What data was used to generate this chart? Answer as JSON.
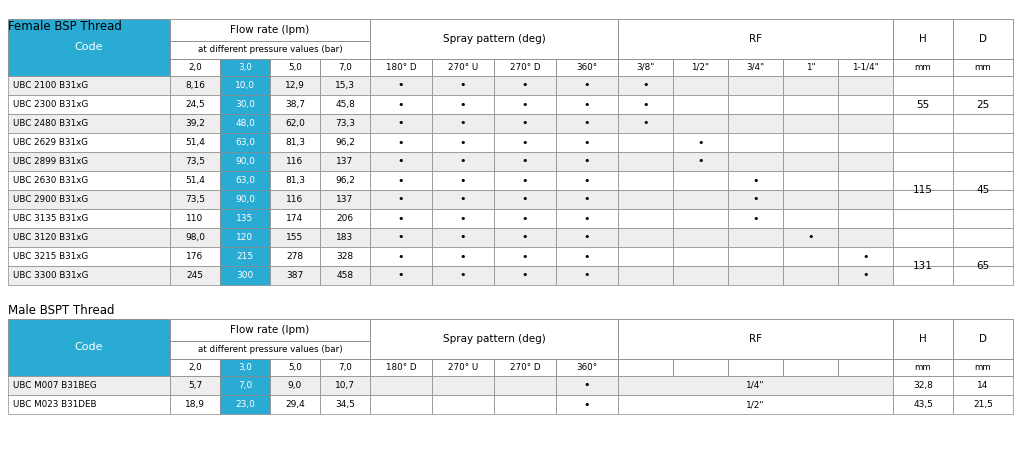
{
  "title1": "Female BSP Thread",
  "title2": "Male BSPT Thread",
  "cyan_color": "#29ABD4",
  "border_color": "#888888",
  "light_gray": "#EEEEEE",
  "female_rows": [
    [
      "UBC 2100 B31xG",
      "8,16",
      "10,0",
      "12,9",
      "15,3",
      "•",
      "•",
      "•",
      "•",
      "•",
      "",
      "",
      "",
      "",
      "",
      ""
    ],
    [
      "UBC 2300 B31xG",
      "24,5",
      "30,0",
      "38,7",
      "45,8",
      "•",
      "•",
      "•",
      "•",
      "•",
      "",
      "",
      "",
      "",
      "",
      ""
    ],
    [
      "UBC 2480 B31xG",
      "39,2",
      "48,0",
      "62,0",
      "73,3",
      "•",
      "•",
      "•",
      "•",
      "•",
      "",
      "",
      "",
      "",
      "",
      ""
    ],
    [
      "UBC 2629 B31xG",
      "51,4",
      "63,0",
      "81,3",
      "96,2",
      "•",
      "•",
      "•",
      "•",
      "",
      "•",
      "",
      "",
      "",
      "",
      ""
    ],
    [
      "UBC 2899 B31xG",
      "73,5",
      "90,0",
      "116",
      "137",
      "•",
      "•",
      "•",
      "•",
      "",
      "•",
      "",
      "",
      "",
      "",
      ""
    ],
    [
      "UBC 2630 B31xG",
      "51,4",
      "63,0",
      "81,3",
      "96,2",
      "•",
      "•",
      "•",
      "•",
      "",
      "",
      "•",
      "",
      "",
      "",
      ""
    ],
    [
      "UBC 2900 B31xG",
      "73,5",
      "90,0",
      "116",
      "137",
      "•",
      "•",
      "•",
      "•",
      "",
      "",
      "•",
      "",
      "",
      "",
      ""
    ],
    [
      "UBC 3135 B31xG",
      "110",
      "135",
      "174",
      "206",
      "•",
      "•",
      "•",
      "•",
      "",
      "",
      "•",
      "",
      "",
      "",
      ""
    ],
    [
      "UBC 3120 B31xG",
      "98,0",
      "120",
      "155",
      "183",
      "•",
      "•",
      "•",
      "•",
      "",
      "",
      "",
      "•",
      "",
      "",
      ""
    ],
    [
      "UBC 3215 B31xG",
      "176",
      "215",
      "278",
      "328",
      "•",
      "•",
      "•",
      "•",
      "",
      "",
      "",
      "",
      "•",
      "",
      ""
    ],
    [
      "UBC 3300 B31xG",
      "245",
      "300",
      "387",
      "458",
      "•",
      "•",
      "•",
      "•",
      "",
      "",
      "",
      "",
      "•",
      "",
      ""
    ]
  ],
  "hd_female": [
    [
      0,
      2,
      "55",
      "25"
    ],
    [
      3,
      8,
      "115",
      "45"
    ],
    [
      9,
      10,
      "131",
      "65"
    ]
  ],
  "male_rows": [
    [
      "UBC M007 B31BEG",
      "5,7",
      "7,0",
      "9,0",
      "10,7",
      "",
      "",
      "",
      "•",
      "1/4\"",
      "32,8",
      "14"
    ],
    [
      "UBC M023 B31DEB",
      "18,9",
      "23,0",
      "29,4",
      "34,5",
      "",
      "",
      "",
      "•",
      "1/2\"",
      "43,5",
      "21,5"
    ]
  ]
}
